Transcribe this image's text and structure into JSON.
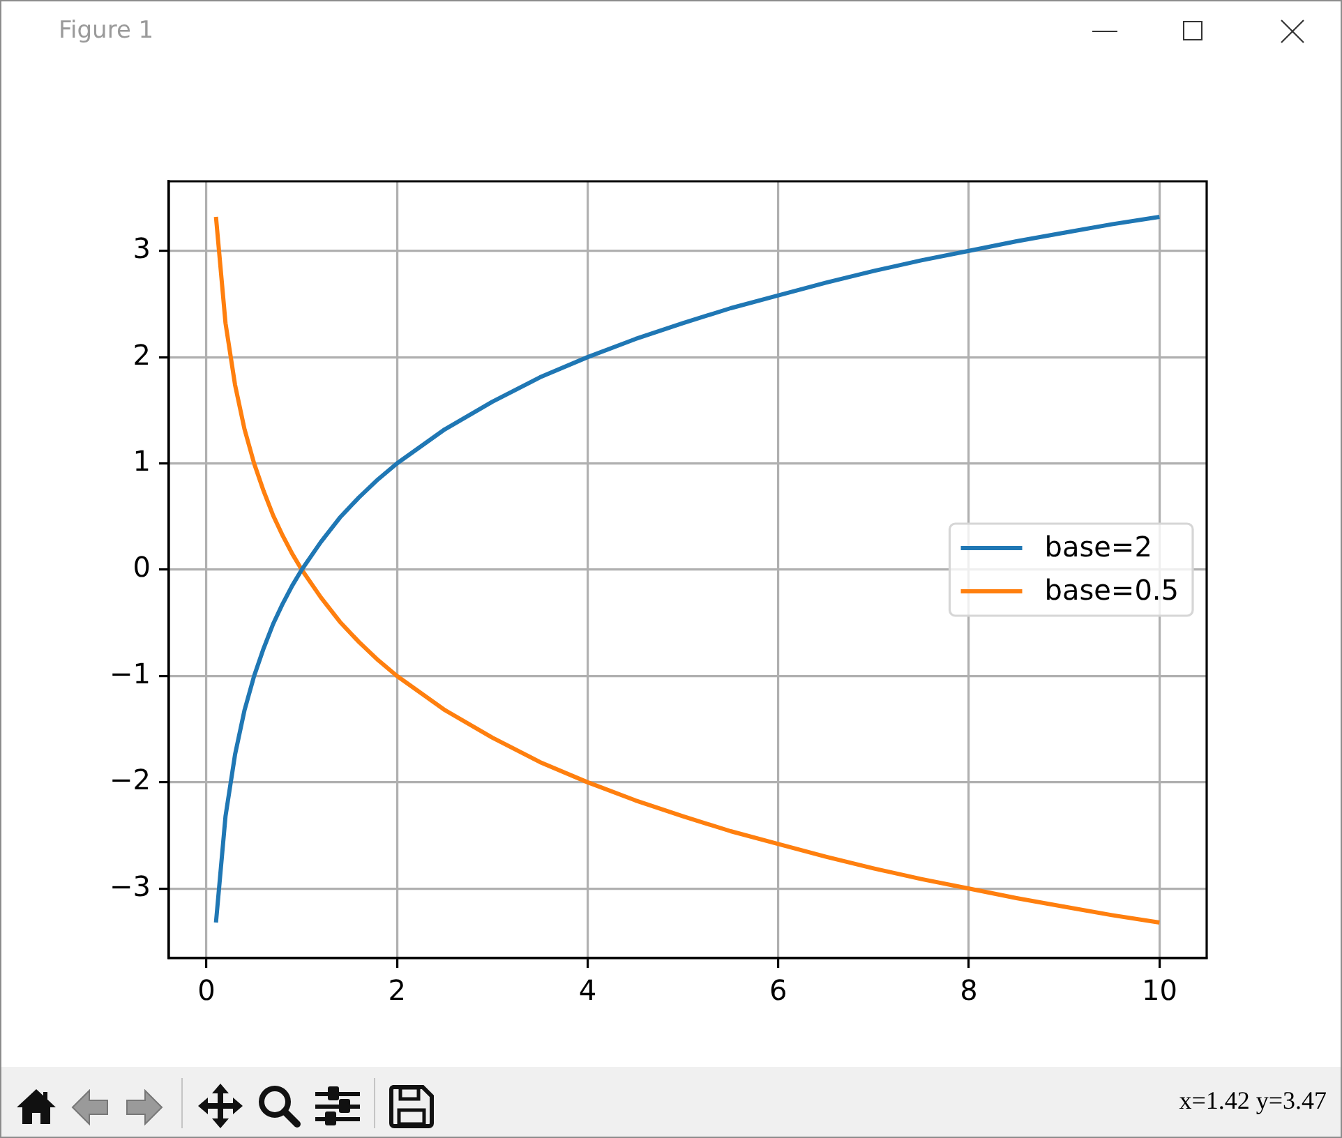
{
  "chart_data": {
    "type": "line",
    "title": "Figure 1",
    "annotations": [
      "x=1.42 y=3.47"
    ],
    "x": [
      0.1,
      0.2,
      0.3,
      0.4,
      0.5,
      0.6,
      0.7,
      0.8,
      0.9,
      1.0,
      1.2,
      1.4,
      1.6,
      1.8,
      2,
      2.5,
      3,
      3.5,
      4,
      4.5,
      5,
      5.5,
      6,
      6.5,
      7,
      7.5,
      8,
      8.5,
      9,
      9.5,
      10
    ],
    "series": [
      {
        "name": "base=2",
        "color": "#1f77b4",
        "values": [
          -3.32,
          -2.32,
          -1.74,
          -1.32,
          -1,
          -0.74,
          -0.51,
          -0.32,
          -0.15,
          0,
          0.26,
          0.49,
          0.68,
          0.85,
          1,
          1.32,
          1.58,
          1.81,
          2,
          2.17,
          2.32,
          2.46,
          2.58,
          2.7,
          2.81,
          2.91,
          3,
          3.09,
          3.17,
          3.25,
          3.32
        ]
      },
      {
        "name": "base=0.5",
        "color": "#ff7f0e",
        "values": [
          3.32,
          2.32,
          1.74,
          1.32,
          1,
          0.74,
          0.51,
          0.32,
          0.15,
          0,
          -0.26,
          -0.49,
          -0.68,
          -0.85,
          -1,
          -1.32,
          -1.58,
          -1.81,
          -2,
          -2.17,
          -2.32,
          -2.46,
          -2.58,
          -2.7,
          -2.81,
          -2.91,
          -3,
          -3.09,
          -3.17,
          -3.25,
          -3.32
        ]
      }
    ],
    "xlim": [
      -0.395,
      10.495
    ],
    "ylim": [
      -3.654,
      3.654
    ],
    "xticks": [
      0,
      2,
      4,
      6,
      8,
      10
    ],
    "yticks": [
      {
        "value": -3,
        "label": "−3"
      },
      {
        "value": -2,
        "label": "−2"
      },
      {
        "value": -1,
        "label": "−1"
      },
      0,
      1,
      2,
      3
    ],
    "grid": true,
    "legend": "right"
  }
}
